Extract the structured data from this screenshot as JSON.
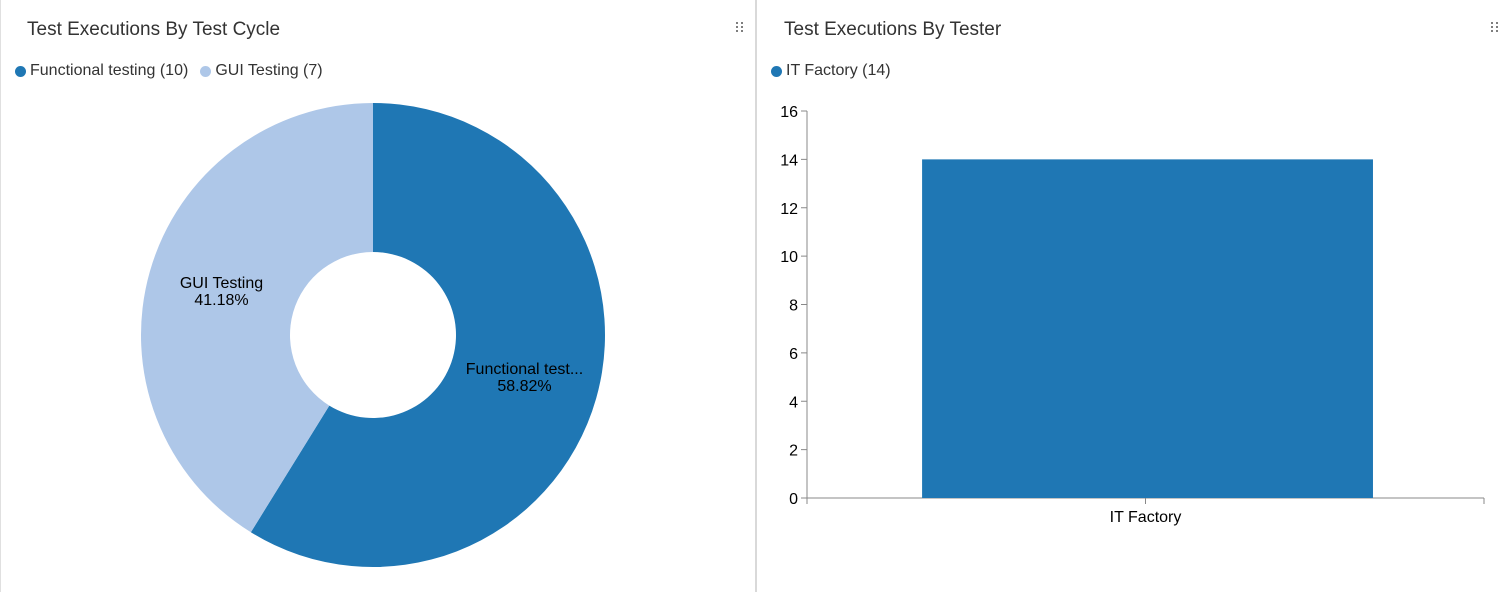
{
  "panels": {
    "left": {
      "title": "Test Executions By Test Cycle"
    },
    "right": {
      "title": "Test Executions By Tester"
    }
  },
  "chart_data": [
    {
      "type": "pie",
      "variant": "donut",
      "title": "Test Executions By Test Cycle",
      "legend_position": "top-left",
      "legend": [
        "Functional testing (10)",
        "GUI Testing (7)"
      ],
      "series": [
        {
          "name": "Functional testing",
          "value": 10,
          "label": "Functional test...",
          "percent": "58.82%",
          "color": "#1f77b4"
        },
        {
          "name": "GUI Testing",
          "value": 7,
          "label": "GUI Testing",
          "percent": "41.18%",
          "color": "#aec7e8"
        }
      ]
    },
    {
      "type": "bar",
      "title": "Test Executions By Tester",
      "legend_position": "top-left",
      "legend": [
        "IT Factory (14)"
      ],
      "categories": [
        "IT Factory"
      ],
      "series": [
        {
          "name": "IT Factory",
          "values": [
            14
          ],
          "color": "#1f77b4"
        }
      ],
      "ylim": [
        0,
        16
      ],
      "yticks": [
        "0",
        "2",
        "4",
        "6",
        "8",
        "10",
        "12",
        "14",
        "16"
      ],
      "grid": false
    }
  ]
}
